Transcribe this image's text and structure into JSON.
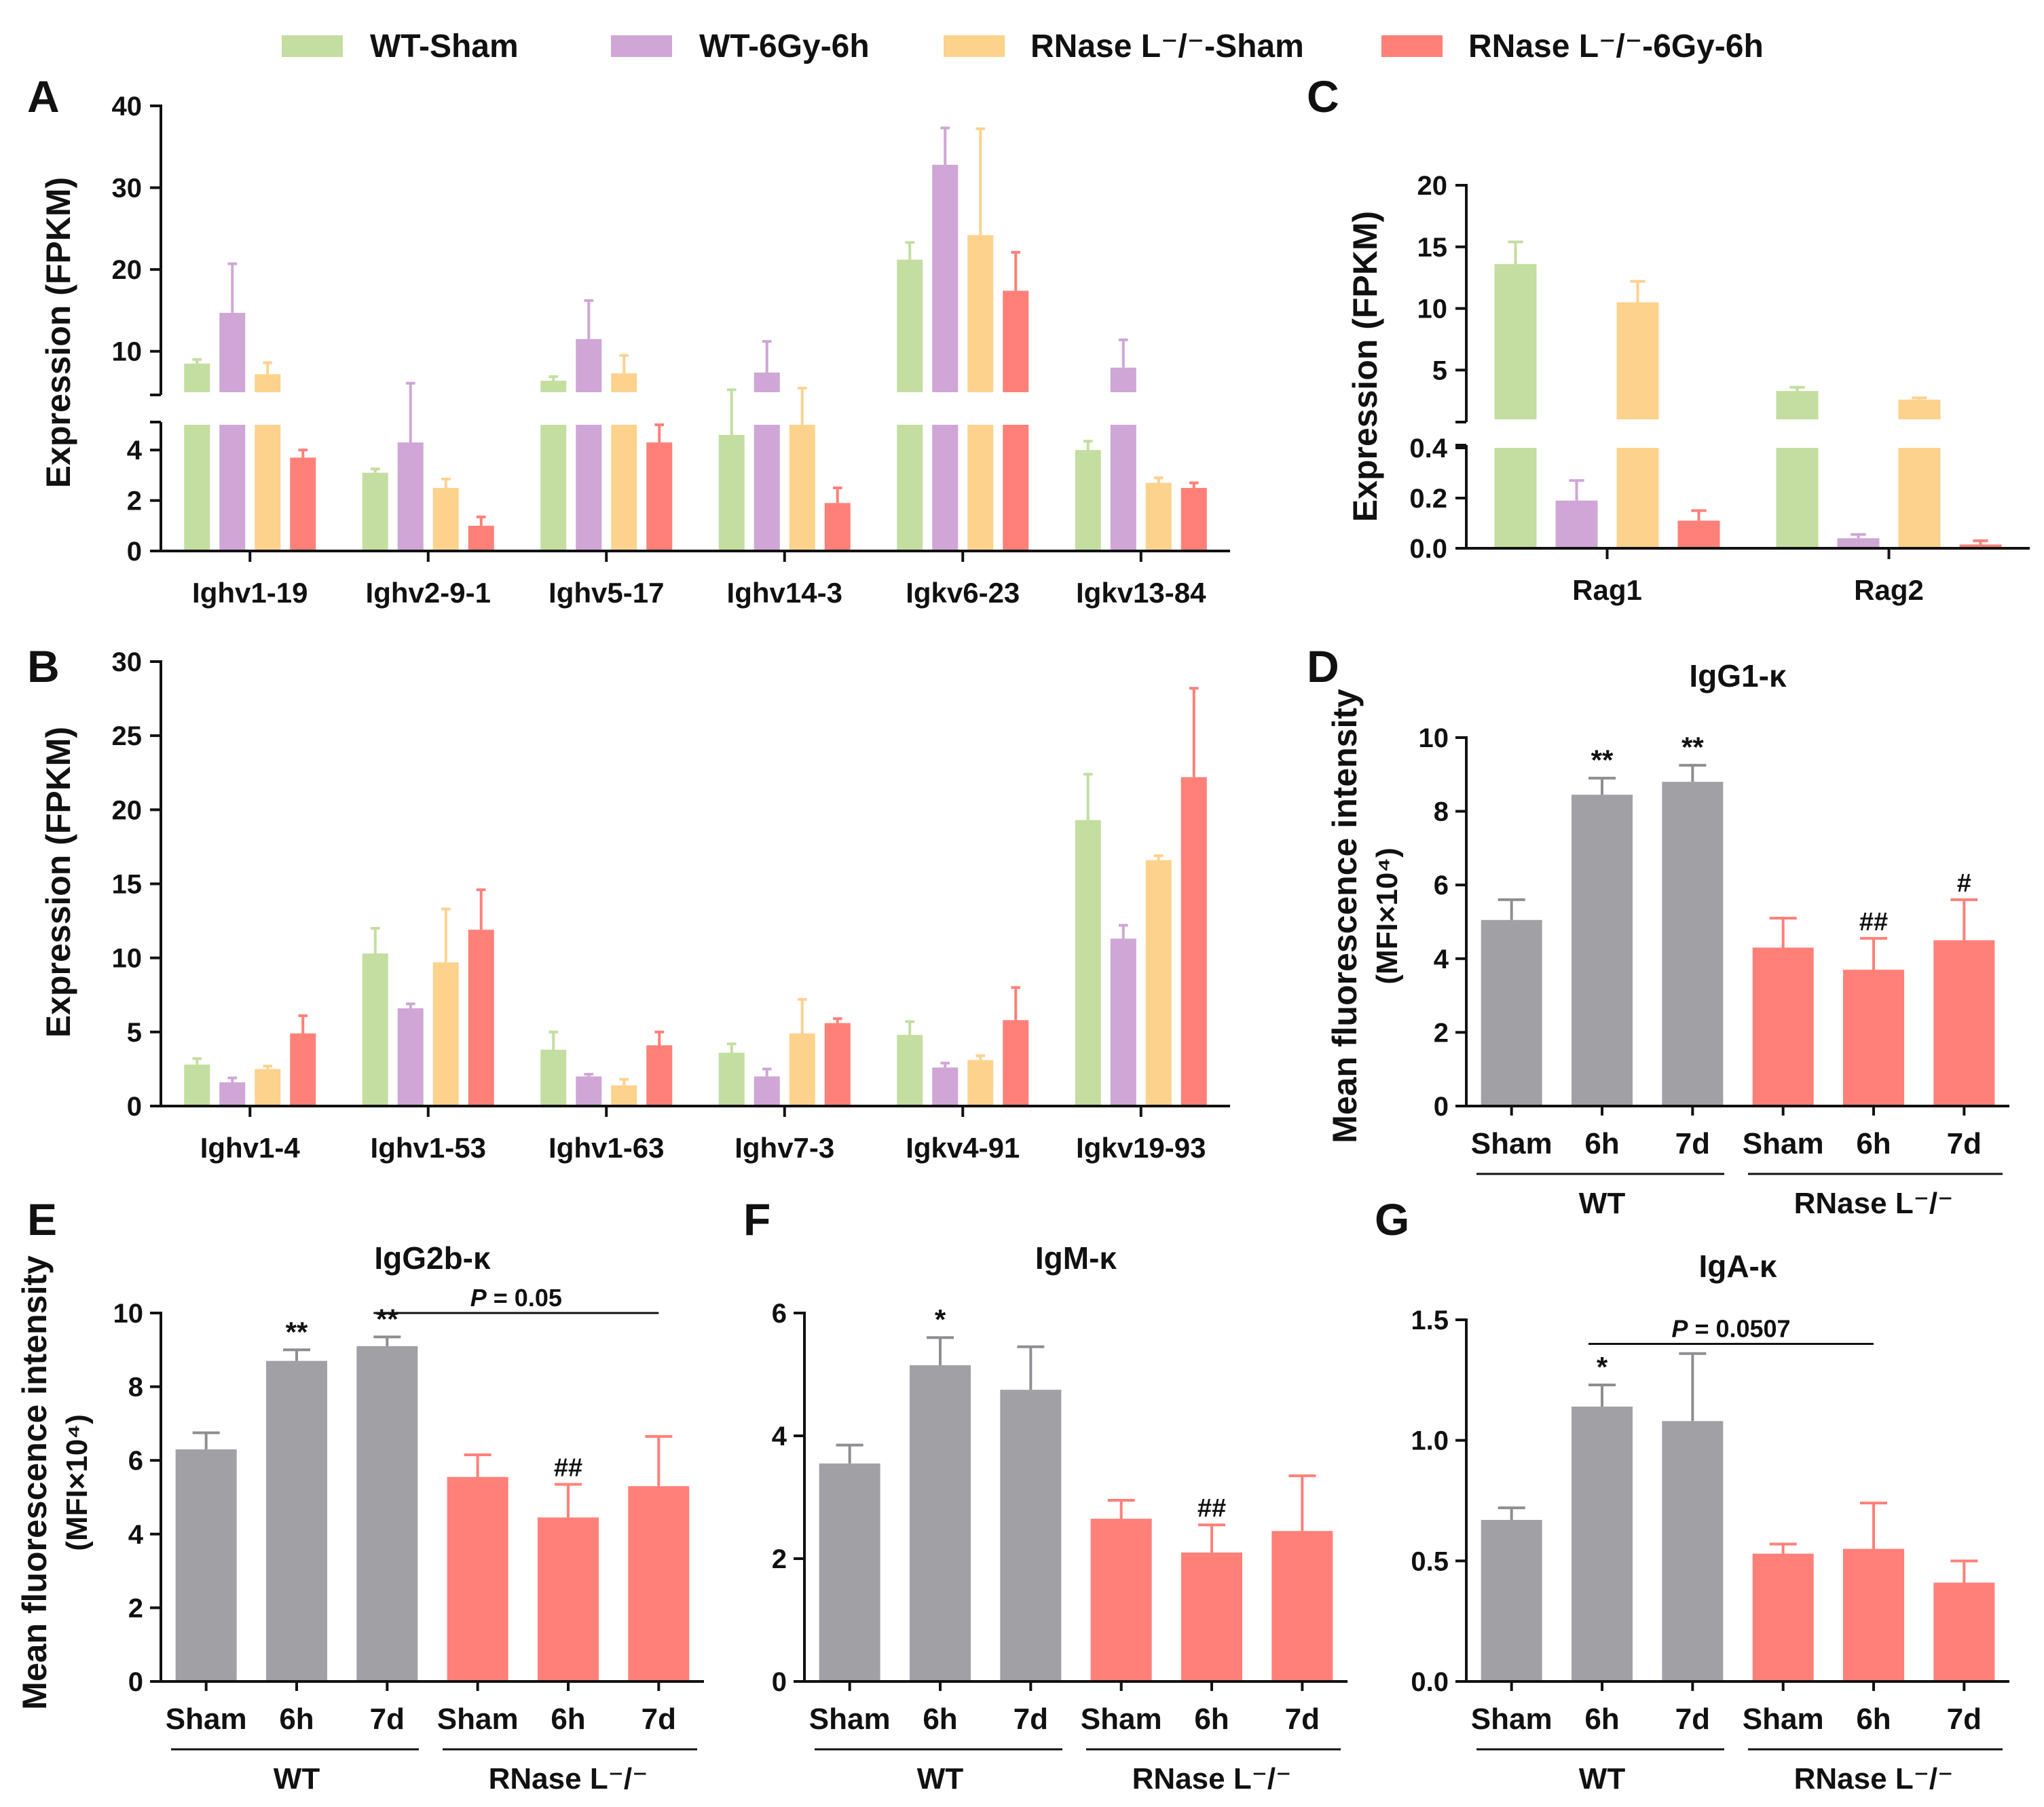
{
  "legend": [
    {
      "label": "WT-Sham",
      "color": "#c3dea0"
    },
    {
      "label": "WT-6Gy-6h",
      "color": "#cfa6d6"
    },
    {
      "label": "RNase L⁻/⁻-Sham",
      "color": "#fdd28d"
    },
    {
      "label": "RNase L⁻/⁻-6Gy-6h",
      "color": "#fe8078"
    }
  ],
  "chart_data": [
    {
      "panel": "A",
      "type": "bar",
      "ylabel": "Expression (FPKM)",
      "axis_break": [
        5,
        5
      ],
      "ylim": [
        0,
        40
      ],
      "lower_ticks": [
        0,
        2,
        4
      ],
      "upper_ticks": [
        10,
        20,
        30,
        40
      ],
      "categories": [
        "Ighv1-19",
        "Ighv2-9-1",
        "Ighv5-17",
        "Ighv14-3",
        "Igkv6-23",
        "Igkv13-84"
      ],
      "series": [
        {
          "name": "WT-Sham",
          "values": [
            8.5,
            3.1,
            6.4,
            4.6,
            21.2,
            4.0
          ],
          "errors": [
            0.5,
            0.15,
            0.5,
            0.7,
            2.1,
            0.35
          ]
        },
        {
          "name": "WT-6Gy-6h",
          "values": [
            14.7,
            4.3,
            11.5,
            7.4,
            32.8,
            8.0
          ],
          "errors": [
            6.0,
            1.8,
            4.7,
            3.8,
            4.5,
            3.4
          ]
        },
        {
          "name": "RNase L-/--Sham",
          "values": [
            7.2,
            2.5,
            7.3,
            5.0,
            24.2,
            2.7
          ],
          "errors": [
            1.4,
            0.35,
            2.2,
            0.5,
            13.0,
            0.2
          ]
        },
        {
          "name": "RNase L-/--6Gy-6h",
          "values": [
            3.7,
            1.0,
            4.3,
            1.9,
            17.4,
            2.5
          ],
          "errors": [
            0.3,
            0.35,
            0.7,
            0.6,
            4.7,
            0.2
          ]
        }
      ]
    },
    {
      "panel": "B",
      "type": "bar",
      "ylabel": "Expression (FPKM)",
      "ylim": [
        0,
        30
      ],
      "ticks": [
        0,
        5,
        10,
        15,
        20,
        25,
        30
      ],
      "categories": [
        "Ighv1-4",
        "Ighv1-53",
        "Ighv1-63",
        "Ighv7-3",
        "Igkv4-91",
        "Igkv19-93"
      ],
      "series": [
        {
          "name": "WT-Sham",
          "values": [
            2.8,
            10.3,
            3.8,
            3.6,
            4.8,
            19.3
          ],
          "errors": [
            0.4,
            1.7,
            1.2,
            0.6,
            0.9,
            3.1
          ]
        },
        {
          "name": "WT-6Gy-6h",
          "values": [
            1.6,
            6.6,
            2.0,
            2.0,
            2.6,
            11.3
          ],
          "errors": [
            0.3,
            0.3,
            0.15,
            0.5,
            0.3,
            0.9
          ]
        },
        {
          "name": "RNase L-/--Sham",
          "values": [
            2.5,
            9.7,
            1.4,
            4.9,
            3.1,
            16.6
          ],
          "errors": [
            0.2,
            3.6,
            0.4,
            2.3,
            0.3,
            0.3
          ]
        },
        {
          "name": "RNase L-/--6Gy-6h",
          "values": [
            4.9,
            11.9,
            4.1,
            5.6,
            5.8,
            22.2
          ],
          "errors": [
            1.2,
            2.7,
            0.9,
            0.3,
            2.2,
            6.0
          ]
        }
      ]
    },
    {
      "panel": "C",
      "type": "bar",
      "ylabel": "Expression (FPKM)",
      "axis_break": [
        0.4,
        1
      ],
      "lower_ticks": [
        "0.0",
        "0.2",
        "0.4"
      ],
      "upper_ticks": [
        5,
        10,
        15,
        20
      ],
      "ylim": [
        0,
        20
      ],
      "categories": [
        "Rag1",
        "Rag2"
      ],
      "series": [
        {
          "name": "WT-Sham",
          "values": [
            13.6,
            3.3
          ],
          "errors": [
            1.8,
            0.3
          ]
        },
        {
          "name": "WT-6Gy-6h",
          "values": [
            0.19,
            0.04
          ],
          "errors": [
            0.08,
            0.015
          ]
        },
        {
          "name": "RNase L-/--Sham",
          "values": [
            10.5,
            2.6
          ],
          "errors": [
            1.7,
            0.15
          ]
        },
        {
          "name": "RNase L-/--6Gy-6h",
          "values": [
            0.11,
            0.015
          ],
          "errors": [
            0.04,
            0.015
          ]
        }
      ]
    },
    {
      "panel": "D",
      "type": "bar",
      "title": "IgG1-κ",
      "ylabel": "Mean fluorescence intensity",
      "ylabel2": "(MFI×10⁴)",
      "ylim": [
        0,
        10
      ],
      "ticks": [
        0,
        2,
        4,
        6,
        8,
        10
      ],
      "categories": [
        "Sham",
        "6h",
        "7d",
        "Sham",
        "6h",
        "7d"
      ],
      "groups": [
        "WT",
        "RNase L⁻/⁻"
      ],
      "values": [
        5.05,
        8.45,
        8.8,
        4.3,
        3.7,
        4.5
      ],
      "errors": [
        0.55,
        0.45,
        0.45,
        0.8,
        0.85,
        1.1
      ],
      "marks": [
        "",
        "**",
        "**",
        "",
        "##",
        "#"
      ]
    },
    {
      "panel": "E",
      "type": "bar",
      "title": "IgG2b-κ",
      "ylabel": "Mean fluorescence intensity",
      "ylabel2": "(MFI×10⁴)",
      "ylim": [
        0,
        10
      ],
      "ticks": [
        0,
        2,
        4,
        6,
        8,
        10
      ],
      "categories": [
        "Sham",
        "6h",
        "7d",
        "Sham",
        "6h",
        "7d"
      ],
      "groups": [
        "WT",
        "RNase L⁻/⁻"
      ],
      "values": [
        6.3,
        8.7,
        9.1,
        5.55,
        4.45,
        5.3
      ],
      "errors": [
        0.45,
        0.3,
        0.25,
        0.6,
        0.9,
        1.35
      ],
      "marks": [
        "",
        "**",
        "**",
        "",
        "##",
        ""
      ],
      "pvalue": {
        "label_p": "P",
        "label_rest": " = 0.05",
        "from": 2,
        "to": 5,
        "y": 10.0
      }
    },
    {
      "panel": "F",
      "type": "bar",
      "title": "IgM-κ",
      "ylim": [
        0,
        6
      ],
      "ticks": [
        0,
        2,
        4,
        6
      ],
      "categories": [
        "Sham",
        "6h",
        "7d",
        "Sham",
        "6h",
        "7d"
      ],
      "groups": [
        "WT",
        "RNase L⁻/⁻"
      ],
      "values": [
        3.55,
        5.15,
        4.75,
        2.65,
        2.1,
        2.45
      ],
      "errors": [
        0.3,
        0.45,
        0.7,
        0.3,
        0.45,
        0.9
      ],
      "marks": [
        "",
        "*",
        "",
        "",
        "##",
        ""
      ]
    },
    {
      "panel": "G",
      "type": "bar",
      "title": "IgA-κ",
      "ylim": [
        0,
        1.5
      ],
      "ticks": [
        "0.0",
        "0.5",
        "1.0",
        "1.5"
      ],
      "categories": [
        "Sham",
        "6h",
        "7d",
        "Sham",
        "6h",
        "7d"
      ],
      "groups": [
        "WT",
        "RNase L⁻/⁻"
      ],
      "values": [
        0.67,
        1.14,
        1.08,
        0.53,
        0.55,
        0.41
      ],
      "errors": [
        0.05,
        0.09,
        0.28,
        0.04,
        0.19,
        0.09
      ],
      "marks": [
        "",
        "*",
        "",
        "",
        "",
        ""
      ],
      "pvalue": {
        "label_p": "P",
        "label_rest": " = 0.0507",
        "from": 1,
        "to": 4,
        "y": 1.4
      }
    }
  ],
  "colors": {
    "wt_bar": "#a1a1a5",
    "ko_bar": "#fe8078",
    "ko_bar_light": "#fda099",
    "err_wt": "#8e8e92"
  }
}
